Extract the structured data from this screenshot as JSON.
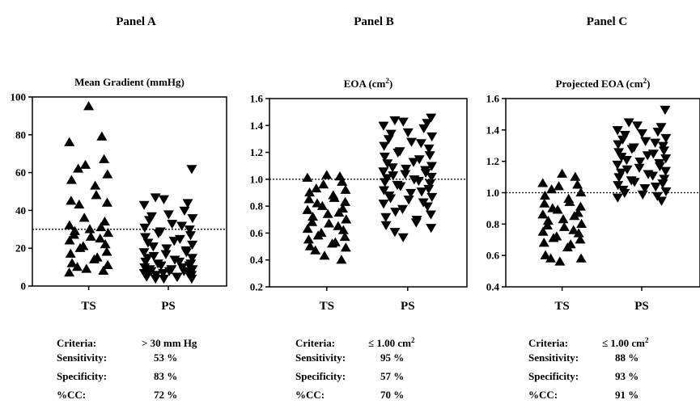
{
  "chart_data": [
    {
      "panel_label": "Panel A",
      "type": "scatter",
      "title": "Mean Gradient (mmHg)",
      "categories": [
        "TS",
        "PS"
      ],
      "ylim": [
        0,
        100
      ],
      "yticks": [
        "0",
        "20",
        "40",
        "60",
        "80",
        "100"
      ],
      "threshold": 30,
      "series": [
        {
          "marker": "triangle-up",
          "category": "TS",
          "values": [
            95,
            79,
            76,
            67,
            64,
            62,
            59,
            56,
            53,
            48,
            45,
            44,
            43,
            36,
            34,
            32,
            31,
            30,
            29,
            28,
            27,
            26,
            25,
            24,
            22,
            21,
            20,
            18,
            17,
            15,
            14,
            12,
            11,
            10,
            9,
            8,
            7
          ]
        },
        {
          "marker": "triangle-down",
          "category": "PS",
          "values": [
            62,
            47,
            46,
            44,
            43,
            40,
            38,
            37,
            36,
            35,
            33,
            32,
            31,
            30,
            29,
            28,
            27,
            26,
            25,
            24,
            23,
            22,
            21,
            20,
            19,
            18,
            18,
            17,
            16,
            15,
            15,
            14,
            13,
            13,
            12,
            12,
            11,
            11,
            10,
            10,
            9,
            9,
            9,
            8,
            8,
            8,
            7,
            7,
            7,
            6,
            6,
            6,
            5,
            5,
            5,
            4,
            4,
            4
          ]
        }
      ],
      "stats": {
        "labels": [
          "Criteria:",
          "Sensitivity:",
          "Specificity:",
          "%CC:"
        ],
        "values": [
          "> 30 mm Hg",
          "53 %",
          "83 %",
          "72 %"
        ]
      }
    },
    {
      "panel_label": "Panel B",
      "type": "scatter",
      "title": "EOA (cm²)",
      "categories": [
        "TS",
        "PS"
      ],
      "ylim": [
        0.2,
        1.6
      ],
      "yticks": [
        "0.2",
        "0.4",
        "0.6",
        "0.8",
        "1.0",
        "1.2",
        "1.4",
        "1.6"
      ],
      "threshold": 1.0,
      "series": [
        {
          "marker": "triangle-up",
          "category": "TS",
          "values": [
            1.03,
            1.02,
            1.01,
            0.98,
            0.96,
            0.93,
            0.92,
            0.9,
            0.88,
            0.86,
            0.85,
            0.83,
            0.82,
            0.8,
            0.78,
            0.77,
            0.75,
            0.74,
            0.72,
            0.7,
            0.68,
            0.67,
            0.65,
            0.63,
            0.62,
            0.6,
            0.58,
            0.57,
            0.55,
            0.53,
            0.52,
            0.5,
            0.49,
            0.47,
            0.43,
            0.4
          ]
        },
        {
          "marker": "triangle-down",
          "category": "PS",
          "values": [
            1.46,
            1.44,
            1.43,
            1.42,
            1.4,
            1.38,
            1.35,
            1.34,
            1.32,
            1.3,
            1.28,
            1.27,
            1.25,
            1.23,
            1.21,
            1.2,
            1.18,
            1.17,
            1.15,
            1.13,
            1.12,
            1.1,
            1.09,
            1.08,
            1.07,
            1.06,
            1.05,
            1.04,
            1.03,
            1.02,
            1.01,
            1.0,
            0.99,
            0.98,
            0.97,
            0.96,
            0.95,
            0.93,
            0.92,
            0.91,
            0.9,
            0.88,
            0.87,
            0.86,
            0.85,
            0.83,
            0.82,
            0.8,
            0.78,
            0.76,
            0.74,
            0.72,
            0.7,
            0.68,
            0.66,
            0.64,
            0.61,
            0.57
          ]
        }
      ],
      "stats": {
        "labels": [
          "Criteria:",
          "Sensitivity:",
          "Specificity:",
          "%CC:"
        ],
        "values": [
          "≤ 1.00 cm²",
          "95 %",
          "57 %",
          "70 %"
        ]
      }
    },
    {
      "panel_label": "Panel C",
      "type": "scatter",
      "title": "Projected EOA (cm²)",
      "categories": [
        "TS",
        "PS"
      ],
      "ylim": [
        0.4,
        1.6
      ],
      "yticks": [
        "0.4",
        "0.6",
        "0.8",
        "1.0",
        "1.2",
        "1.4",
        "1.6"
      ],
      "threshold": 1.0,
      "series": [
        {
          "marker": "triangle-up",
          "category": "TS",
          "values": [
            1.12,
            1.1,
            1.06,
            1.05,
            1.04,
            1.02,
            1.0,
            0.98,
            0.96,
            0.94,
            0.93,
            0.91,
            0.9,
            0.89,
            0.87,
            0.86,
            0.85,
            0.83,
            0.82,
            0.8,
            0.79,
            0.78,
            0.76,
            0.75,
            0.74,
            0.72,
            0.71,
            0.7,
            0.68,
            0.67,
            0.65,
            0.6,
            0.58,
            0.58,
            0.56
          ]
        },
        {
          "marker": "triangle-down",
          "category": "PS",
          "values": [
            1.53,
            1.45,
            1.43,
            1.42,
            1.4,
            1.39,
            1.38,
            1.37,
            1.35,
            1.34,
            1.33,
            1.32,
            1.31,
            1.3,
            1.29,
            1.28,
            1.27,
            1.26,
            1.25,
            1.24,
            1.23,
            1.22,
            1.21,
            1.2,
            1.19,
            1.18,
            1.17,
            1.16,
            1.15,
            1.14,
            1.13,
            1.12,
            1.11,
            1.1,
            1.09,
            1.08,
            1.07,
            1.06,
            1.05,
            1.04,
            1.03,
            1.02,
            1.01,
            1.0,
            0.99,
            0.98,
            0.97,
            0.95
          ]
        }
      ],
      "stats": {
        "labels": [
          "Criteria:",
          "Sensitivity:",
          "Specificity:",
          "%CC:"
        ],
        "values": [
          "≤ 1.00 cm²",
          "88 %",
          "93 %",
          "91 %"
        ]
      }
    }
  ]
}
